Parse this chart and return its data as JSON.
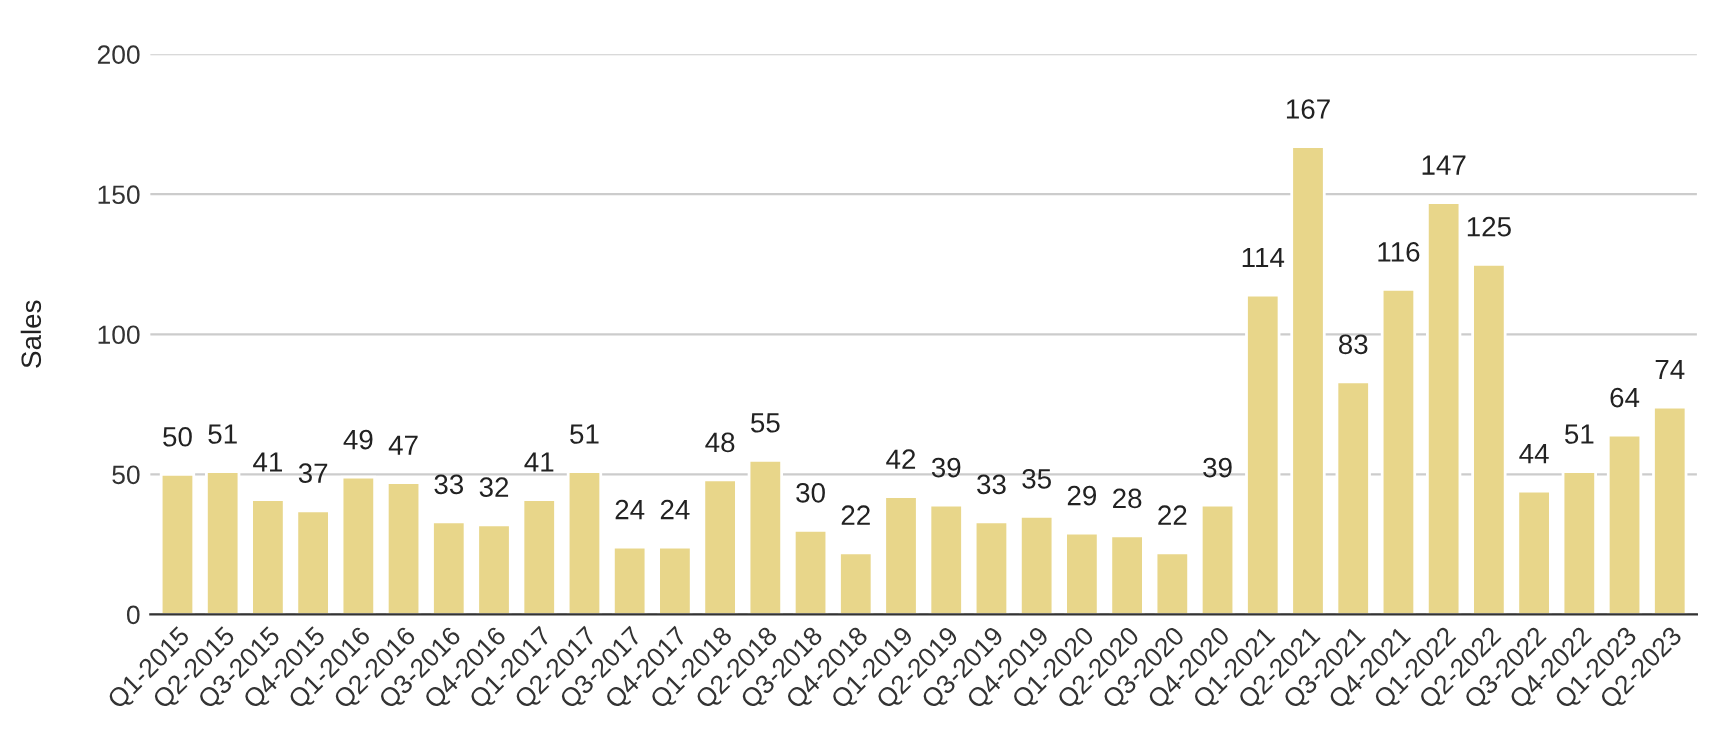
{
  "chart_data": {
    "type": "bar",
    "ylabel": "Sales",
    "categories": [
      "Q1-2015",
      "Q2-2015",
      "Q3-2015",
      "Q4-2015",
      "Q1-2016",
      "Q2-2016",
      "Q3-2016",
      "Q4-2016",
      "Q1-2017",
      "Q2-2017",
      "Q3-2017",
      "Q4-2017",
      "Q1-2018",
      "Q2-2018",
      "Q3-2018",
      "Q4-2018",
      "Q1-2019",
      "Q2-2019",
      "Q3-2019",
      "Q4-2019",
      "Q1-2020",
      "Q2-2020",
      "Q3-2020",
      "Q4-2020",
      "Q1-2021",
      "Q2-2021",
      "Q3-2021",
      "Q4-2021",
      "Q1-2022",
      "Q2-2022",
      "Q3-2022",
      "Q4-2022",
      "Q1-2023",
      "Q2-2023"
    ],
    "values": [
      50,
      51,
      41,
      37,
      49,
      47,
      33,
      32,
      41,
      51,
      24,
      24,
      48,
      55,
      30,
      22,
      42,
      39,
      33,
      35,
      29,
      28,
      22,
      39,
      114,
      167,
      83,
      116,
      147,
      125,
      44,
      51,
      64,
      74
    ],
    "color": "#e8d68a",
    "ylim": [
      0,
      200
    ],
    "yticks": [
      0,
      50,
      100,
      150,
      200
    ],
    "grid": "y",
    "data_labels": true,
    "legend": false
  }
}
